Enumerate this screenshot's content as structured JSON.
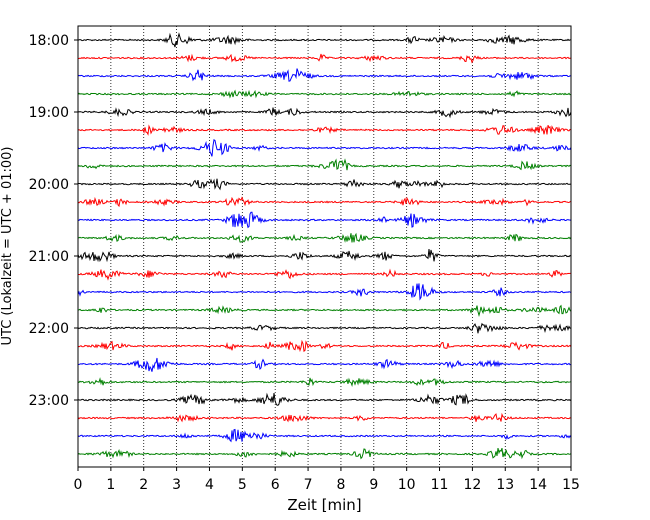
{
  "chart_data": {
    "type": "line",
    "chart_kind": "seismogram helicorder",
    "xlabel": "Zeit  [min]",
    "ylabel": "UTC (Lokalzeit = UTC + 01:00)",
    "xlim": [
      0,
      15
    ],
    "x_ticks": [
      "0",
      "1",
      "2",
      "3",
      "4",
      "5",
      "6",
      "7",
      "8",
      "9",
      "10",
      "11",
      "12",
      "13",
      "14",
      "15"
    ],
    "y_range_utc": [
      "17:45",
      "24:00"
    ],
    "row_interval_minutes": 15,
    "y_tick_labels": [
      "18:00",
      "19:00",
      "20:00",
      "21:00",
      "22:00",
      "23:00"
    ],
    "grid": "vertical dotted lines at each minute",
    "trace_color_cycle": [
      "#000000",
      "#ff0000",
      "#0000ff",
      "#008000"
    ],
    "rows": [
      {
        "start": "18:00",
        "color": "#000000"
      },
      {
        "start": "18:15",
        "color": "#ff0000"
      },
      {
        "start": "18:30",
        "color": "#0000ff"
      },
      {
        "start": "18:45",
        "color": "#008000"
      },
      {
        "start": "19:00",
        "color": "#000000"
      },
      {
        "start": "19:15",
        "color": "#ff0000"
      },
      {
        "start": "19:30",
        "color": "#0000ff"
      },
      {
        "start": "19:45",
        "color": "#008000"
      },
      {
        "start": "20:00",
        "color": "#000000"
      },
      {
        "start": "20:15",
        "color": "#ff0000"
      },
      {
        "start": "20:30",
        "color": "#0000ff"
      },
      {
        "start": "20:45",
        "color": "#008000"
      },
      {
        "start": "21:00",
        "color": "#000000"
      },
      {
        "start": "21:15",
        "color": "#ff0000"
      },
      {
        "start": "21:30",
        "color": "#0000ff"
      },
      {
        "start": "21:45",
        "color": "#008000"
      },
      {
        "start": "22:00",
        "color": "#000000"
      },
      {
        "start": "22:15",
        "color": "#ff0000"
      },
      {
        "start": "22:30",
        "color": "#0000ff"
      },
      {
        "start": "22:45",
        "color": "#008000"
      },
      {
        "start": "23:00",
        "color": "#000000"
      },
      {
        "start": "23:15",
        "color": "#ff0000"
      },
      {
        "start": "23:30",
        "color": "#0000ff"
      },
      {
        "start": "23:45",
        "color": "#008000"
      }
    ]
  }
}
